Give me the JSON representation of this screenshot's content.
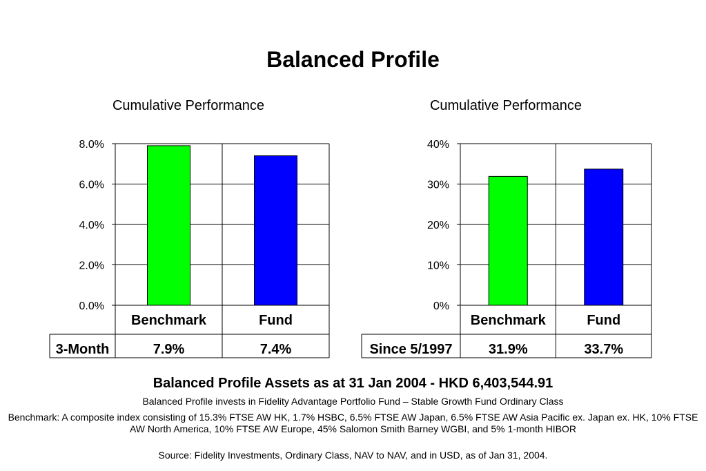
{
  "page": {
    "title": "Balanced Profile",
    "assets_line": "Balanced Profile Assets as at 31 Jan 2004 - HKD 6,403,544.91",
    "invests_line": "Balanced Profile invests in Fidelity Advantage Portfolio Fund – Stable Growth Fund Ordinary Class",
    "benchmark_note": "Benchmark:  A composite index consisting of 15.3% FTSE AW HK, 1.7% HSBC, 6.5% FTSE AW Japan, 6.5% FTSE AW Asia Pacific ex. Japan ex. HK, 10% FTSE AW North America, 10% FTSE AW Europe, 45% Salomon Smith Barney WGBI, and 5% 1-month HIBOR",
    "source": "Source:  Fidelity Investments, Ordinary Class, NAV to NAV, and  in USD, as of Jan 31, 2004."
  },
  "chart_data": [
    {
      "type": "bar",
      "title": "Cumulative Performance",
      "categories": [
        "Benchmark",
        "Fund"
      ],
      "values": [
        7.9,
        7.4
      ],
      "colors": [
        "#00ff00",
        "#0000ff"
      ],
      "ylim": [
        0,
        8
      ],
      "yticks": [
        "0.0%",
        "2.0%",
        "4.0%",
        "6.0%",
        "8.0%"
      ],
      "grid": true,
      "table": {
        "row_label": "3-Month",
        "cells": [
          "7.9%",
          "7.4%"
        ]
      }
    },
    {
      "type": "bar",
      "title": "Cumulative Performance",
      "categories": [
        "Benchmark",
        "Fund"
      ],
      "values": [
        31.9,
        33.7
      ],
      "colors": [
        "#00ff00",
        "#0000ff"
      ],
      "ylim": [
        0,
        40
      ],
      "yticks": [
        "0%",
        "10%",
        "20%",
        "30%",
        "40%"
      ],
      "grid": true,
      "table": {
        "row_label": "Since 5/1997",
        "cells": [
          "31.9%",
          "33.7%"
        ]
      }
    }
  ]
}
